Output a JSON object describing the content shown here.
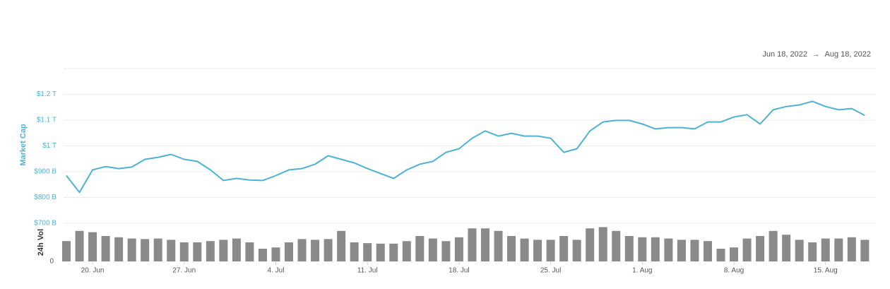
{
  "chart_data": {
    "type": "line",
    "date_range": {
      "start": "Jun 18, 2022",
      "arrow": "→",
      "end": "Aug 18, 2022"
    },
    "y_label": "Market Cap",
    "y2_label": "24h Vol",
    "categories": [
      null,
      null,
      "20. Jun",
      null,
      null,
      null,
      null,
      null,
      null,
      "27. Jun",
      null,
      null,
      null,
      null,
      null,
      null,
      "4. Jul",
      null,
      null,
      null,
      null,
      null,
      null,
      "11. Jul",
      null,
      null,
      null,
      null,
      null,
      null,
      "18. Jul",
      null,
      null,
      null,
      null,
      null,
      null,
      "25. Jul",
      null,
      null,
      null,
      null,
      null,
      null,
      "1. Aug",
      null,
      null,
      null,
      null,
      null,
      null,
      "8. Aug",
      null,
      null,
      null,
      null,
      null,
      null,
      "15. Aug",
      null,
      null,
      null
    ],
    "series": [
      {
        "name": "Market Cap",
        "color": "#4db3d4",
        "values": [
          885,
          820,
          907,
          920,
          912,
          918,
          948,
          956,
          967,
          948,
          940,
          907,
          866,
          874,
          868,
          866,
          885,
          907,
          912,
          929,
          962,
          948,
          934,
          912,
          893,
          874,
          907,
          929,
          940,
          975,
          989,
          1030,
          1058,
          1038,
          1049,
          1038,
          1038,
          1030,
          975,
          989,
          1058,
          1093,
          1099,
          1099,
          1085,
          1066,
          1071,
          1071,
          1066,
          1093,
          1093,
          1112,
          1121,
          1085,
          1140,
          1153,
          1159,
          1173,
          1153,
          1140,
          1145,
          1118
        ]
      },
      {
        "name": "24h Vol",
        "type": "bar",
        "axis": "y2",
        "color": "#8a8a8a",
        "values": [
          80,
          120,
          115,
          100,
          95,
          90,
          88,
          90,
          85,
          75,
          75,
          80,
          85,
          90,
          75,
          50,
          55,
          75,
          88,
          85,
          88,
          120,
          75,
          72,
          70,
          70,
          80,
          100,
          90,
          80,
          95,
          130,
          130,
          120,
          100,
          90,
          85,
          85,
          100,
          85,
          130,
          135,
          120,
          100,
          95,
          95,
          90,
          85,
          85,
          80,
          50,
          55,
          90,
          100,
          120,
          105,
          85,
          75,
          90,
          90,
          95,
          85
        ]
      }
    ],
    "ylim": [
      700,
      1300
    ],
    "yticks": [
      {
        "value": 700,
        "label": "$700 B"
      },
      {
        "value": 800,
        "label": "$800 B"
      },
      {
        "value": 900,
        "label": "$900 B"
      },
      {
        "value": 1000,
        "label": "$1 T"
      },
      {
        "value": 1100,
        "label": "$1.1 T"
      },
      {
        "value": 1200,
        "label": "$1.2 T"
      }
    ],
    "y2lim": [
      0,
      150
    ],
    "y2ticks": [
      0
    ],
    "grid": true
  }
}
